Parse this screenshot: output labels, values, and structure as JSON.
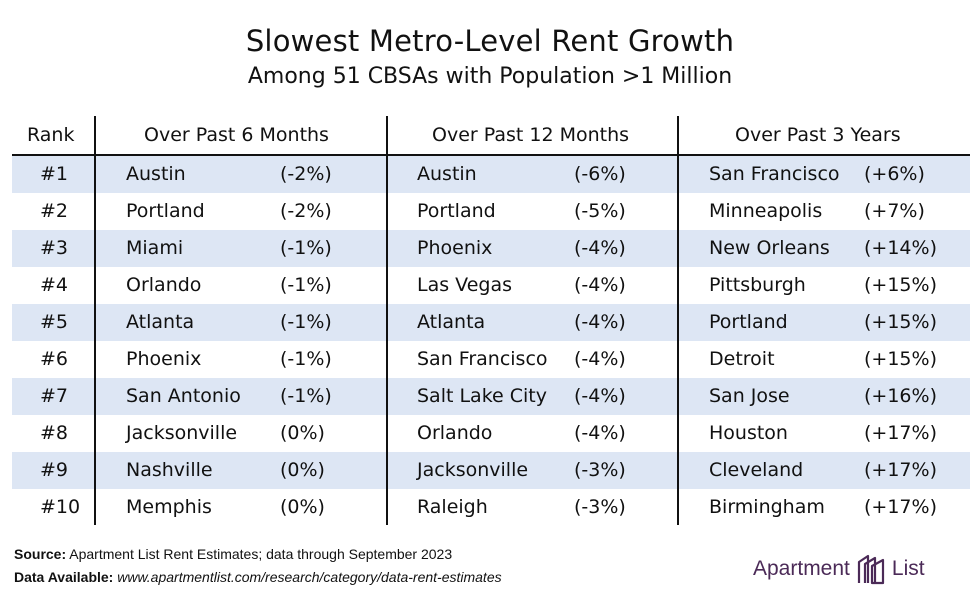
{
  "title": "Slowest Metro-Level Rent Growth",
  "subtitle": "Among 51 CBSAs with Population >1 Million",
  "chart_data": {
    "type": "table",
    "columns": [
      "Rank",
      "Over Past 6 Months",
      "Over Past 12 Months",
      "Over Past 3 Years"
    ],
    "rows": [
      {
        "rank": "#1",
        "m6_city": "Austin",
        "m6_val": "(-2%)",
        "m12_city": "Austin",
        "m12_val": "(-6%)",
        "y3_city": "San Francisco",
        "y3_val": "(+6%)"
      },
      {
        "rank": "#2",
        "m6_city": "Portland",
        "m6_val": "(-2%)",
        "m12_city": "Portland",
        "m12_val": "(-5%)",
        "y3_city": "Minneapolis",
        "y3_val": "(+7%)"
      },
      {
        "rank": "#3",
        "m6_city": "Miami",
        "m6_val": "(-1%)",
        "m12_city": "Phoenix",
        "m12_val": "(-4%)",
        "y3_city": "New Orleans",
        "y3_val": "(+14%)"
      },
      {
        "rank": "#4",
        "m6_city": "Orlando",
        "m6_val": "(-1%)",
        "m12_city": "Las Vegas",
        "m12_val": "(-4%)",
        "y3_city": "Pittsburgh",
        "y3_val": "(+15%)"
      },
      {
        "rank": "#5",
        "m6_city": "Atlanta",
        "m6_val": "(-1%)",
        "m12_city": "Atlanta",
        "m12_val": "(-4%)",
        "y3_city": "Portland",
        "y3_val": "(+15%)"
      },
      {
        "rank": "#6",
        "m6_city": "Phoenix",
        "m6_val": "(-1%)",
        "m12_city": "San Francisco",
        "m12_val": "(-4%)",
        "y3_city": "Detroit",
        "y3_val": "(+15%)"
      },
      {
        "rank": "#7",
        "m6_city": "San Antonio",
        "m6_val": "(-1%)",
        "m12_city": "Salt Lake City",
        "m12_val": "(-4%)",
        "y3_city": "San Jose",
        "y3_val": "(+16%)"
      },
      {
        "rank": "#8",
        "m6_city": "Jacksonville",
        "m6_val": "(0%)",
        "m12_city": "Orlando",
        "m12_val": "(-4%)",
        "y3_city": "Houston",
        "y3_val": "(+17%)"
      },
      {
        "rank": "#9",
        "m6_city": "Nashville",
        "m6_val": "(0%)",
        "m12_city": "Jacksonville",
        "m12_val": "(-3%)",
        "y3_city": "Cleveland",
        "y3_val": "(+17%)"
      },
      {
        "rank": "#10",
        "m6_city": "Memphis",
        "m6_val": "(0%)",
        "m12_city": "Raleigh",
        "m12_val": "(-3%)",
        "y3_city": "Birmingham",
        "y3_val": "(+17%)"
      }
    ],
    "row_shade_color": "#dde6f4"
  },
  "footer": {
    "source_label": "Source:",
    "source_text": "Apartment List Rent Estimates; data through September 2023",
    "available_label": "Data Available:",
    "available_text": "www.apartmentlist.com/research/category/data-rent-estimates"
  },
  "brand": {
    "word1": "Apartment",
    "word2": "List",
    "color": "#4b2a57",
    "icon": "apartment-list-logo-icon"
  }
}
